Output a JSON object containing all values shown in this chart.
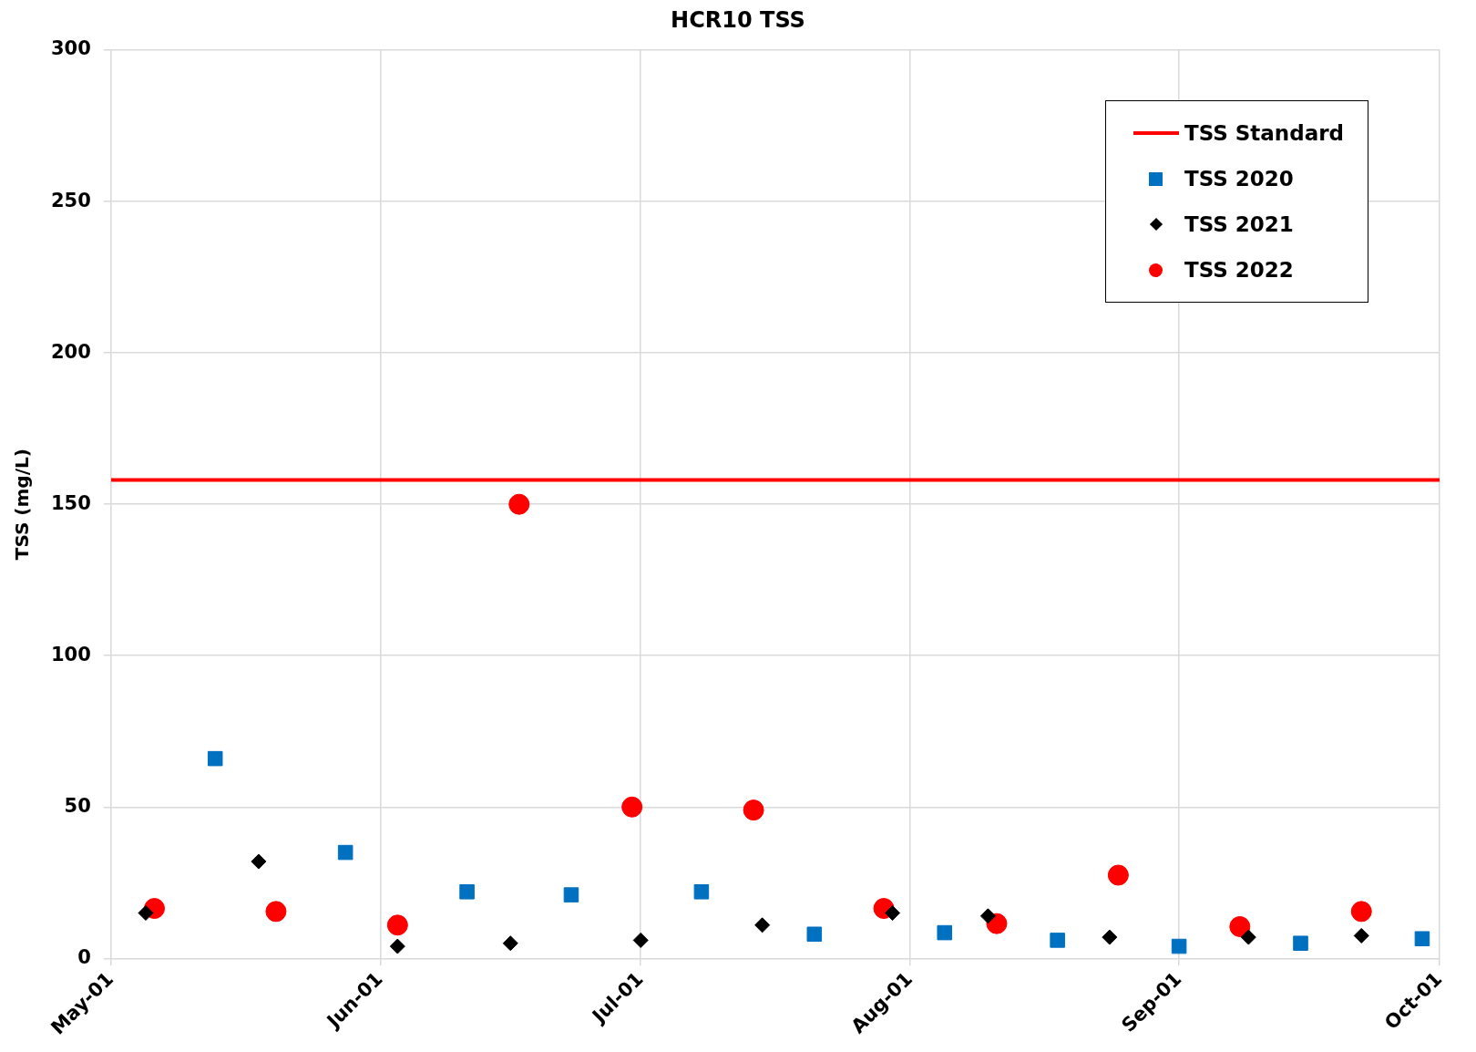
{
  "chart_data": {
    "type": "scatter",
    "title": "HCR10 TSS",
    "ylabel": "TSS (mg/L)",
    "xlim": [
      "--05-01",
      "--10-01"
    ],
    "xticks": [
      {
        "value": "--05-01",
        "label": "May-01"
      },
      {
        "value": "--06-01",
        "label": "Jun-01"
      },
      {
        "value": "--07-01",
        "label": "Jul-01"
      },
      {
        "value": "--08-01",
        "label": "Aug-01"
      },
      {
        "value": "--09-01",
        "label": "Sep-01"
      },
      {
        "value": "--10-01",
        "label": "Oct-01"
      }
    ],
    "ylim": [
      0,
      300
    ],
    "yticks": [
      0,
      50,
      100,
      150,
      200,
      250,
      300
    ],
    "grid": true,
    "legend": "top right",
    "ref_lines": [
      {
        "axis": "y",
        "value": 158,
        "label": "TSS Standard",
        "color": "#ff0000"
      }
    ],
    "series": [
      {
        "name": "TSS 2020",
        "color": "#0070c0",
        "marker": "square",
        "x": [
          "--05-13",
          "--05-28",
          "--06-11",
          "--06-23",
          "--07-08",
          "--07-21",
          "--08-05",
          "--08-18",
          "--09-01",
          "--09-15",
          "--09-29"
        ],
        "values": [
          66,
          35,
          22,
          21,
          22,
          8,
          8.5,
          6,
          4,
          5,
          6.5
        ]
      },
      {
        "name": "TSS 2021",
        "color": "#000000",
        "marker": "diamond",
        "x": [
          "--05-05",
          "--05-18",
          "--06-03",
          "--06-16",
          "--07-01",
          "--07-15",
          "--07-30",
          "--08-10",
          "--08-24",
          "--09-09",
          "--09-22"
        ],
        "values": [
          15,
          32,
          4,
          5,
          6,
          11,
          15,
          14,
          7,
          7,
          7.5
        ]
      },
      {
        "name": "TSS 2022",
        "color": "#ff0000",
        "marker": "circle",
        "x": [
          "--05-06",
          "--05-20",
          "--06-03",
          "--06-17",
          "--06-30",
          "--07-14",
          "--07-29",
          "--08-11",
          "--08-25",
          "--09-08",
          "--09-22"
        ],
        "values": [
          16.5,
          15.5,
          11,
          150,
          50,
          49,
          16.5,
          11.5,
          27.5,
          10.5,
          15.5
        ]
      }
    ]
  }
}
